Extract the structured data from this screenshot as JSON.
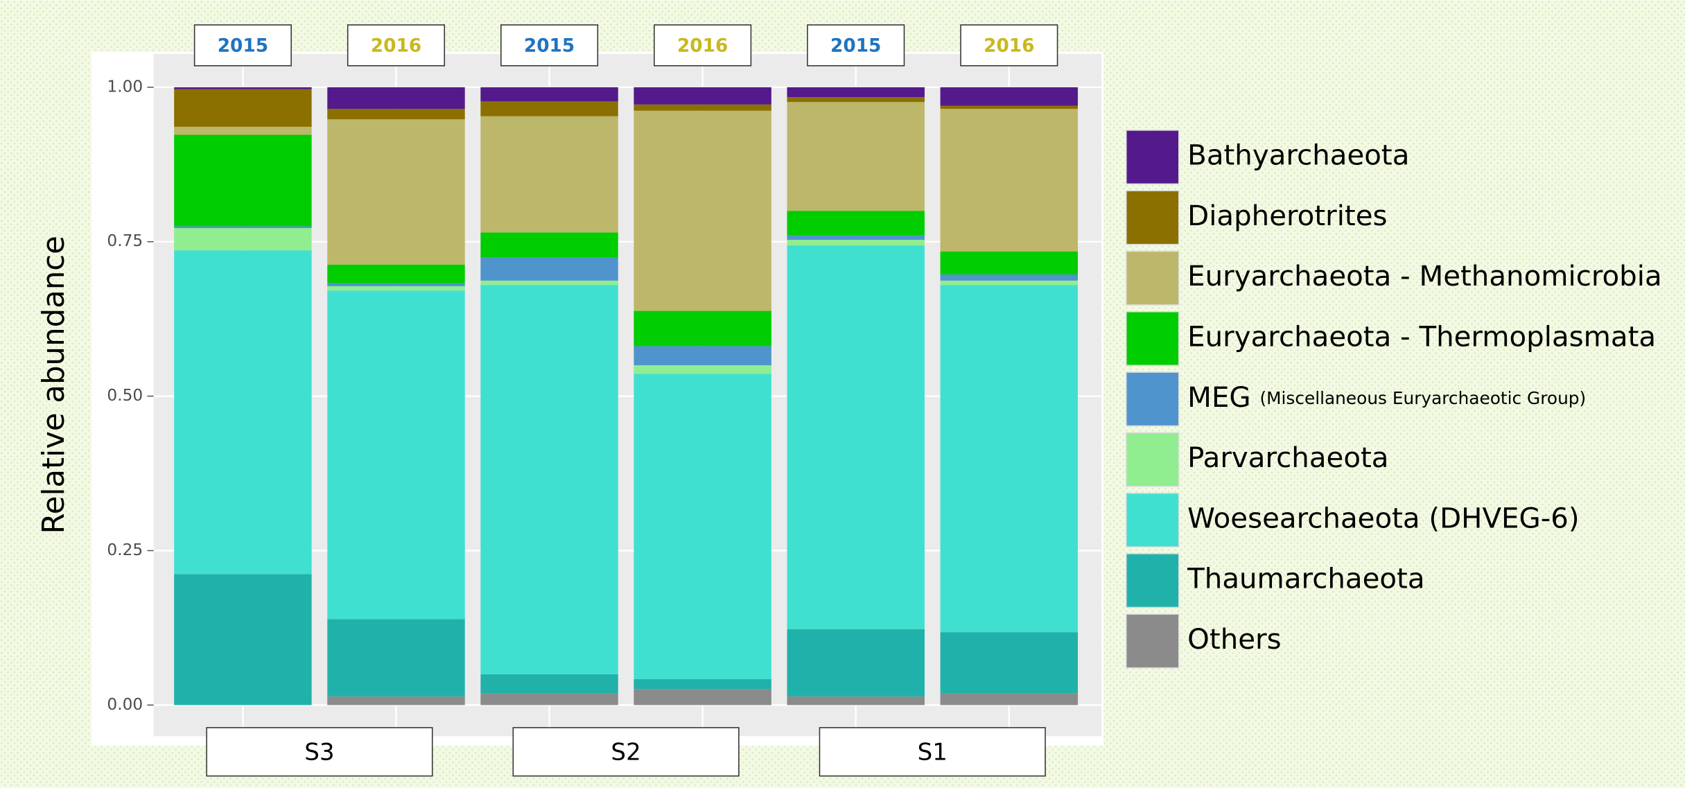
{
  "chart_data": {
    "type": "stacked_bar",
    "y_label": "Relative abundance",
    "categories": [
      "2015",
      "2016",
      "2015",
      "2016",
      "2015",
      "2016"
    ],
    "category_colors": [
      "#1f74c0",
      "#c9b81e",
      "#1f74c0",
      "#c9b81e",
      "#1f74c0",
      "#c9b81e"
    ],
    "groups": [
      "S3",
      "S2",
      "S1"
    ],
    "ylim": [
      0,
      1
    ],
    "yticks": [
      {
        "value": 0,
        "label": "0.00"
      },
      {
        "value": 0.25,
        "label": "0.25"
      },
      {
        "value": 0.5,
        "label": "0.50"
      },
      {
        "value": 0.75,
        "label": "0.75"
      },
      {
        "value": 1,
        "label": "1.00"
      }
    ],
    "grid": true,
    "legend": "right",
    "series": [
      {
        "name": "Bathyarchaeota",
        "color": "#541a8b",
        "values": [
          0.003,
          0.035,
          0.023,
          0.028,
          0.016,
          0.03
        ]
      },
      {
        "name": "Diapherotrites",
        "color": "#8b7000",
        "values": [
          0.061,
          0.017,
          0.024,
          0.01,
          0.008,
          0.005
        ]
      },
      {
        "name": "Euryarchaeota - Methanomicrobia",
        "color": "#bdb76b",
        "values": [
          0.013,
          0.235,
          0.188,
          0.324,
          0.176,
          0.231
        ]
      },
      {
        "name": "Euryarchaeota - Thermoplasmata",
        "color": "#00cd00",
        "values": [
          0.148,
          0.03,
          0.04,
          0.057,
          0.04,
          0.037
        ]
      },
      {
        "name": "MEG (Miscellaneous Euryarchaeotic Group)",
        "color": "#4f94cd",
        "values": [
          0.003,
          0.005,
          0.038,
          0.031,
          0.007,
          0.01
        ]
      },
      {
        "name": "Parvarchaeota",
        "color": "#90ee90",
        "values": [
          0.036,
          0.007,
          0.007,
          0.014,
          0.009,
          0.007
        ]
      },
      {
        "name": "Woesearchaeota (DHVEG-6)",
        "color": "#40e0d0",
        "values": [
          0.524,
          0.532,
          0.63,
          0.494,
          0.621,
          0.562
        ]
      },
      {
        "name": "Thaumarchaeota",
        "color": "#20b2aa",
        "values": [
          0.212,
          0.125,
          0.031,
          0.016,
          0.109,
          0.099
        ]
      },
      {
        "name": "Others",
        "color": "#8b8b8b",
        "values": [
          0.0,
          0.014,
          0.019,
          0.026,
          0.014,
          0.019
        ]
      }
    ]
  }
}
